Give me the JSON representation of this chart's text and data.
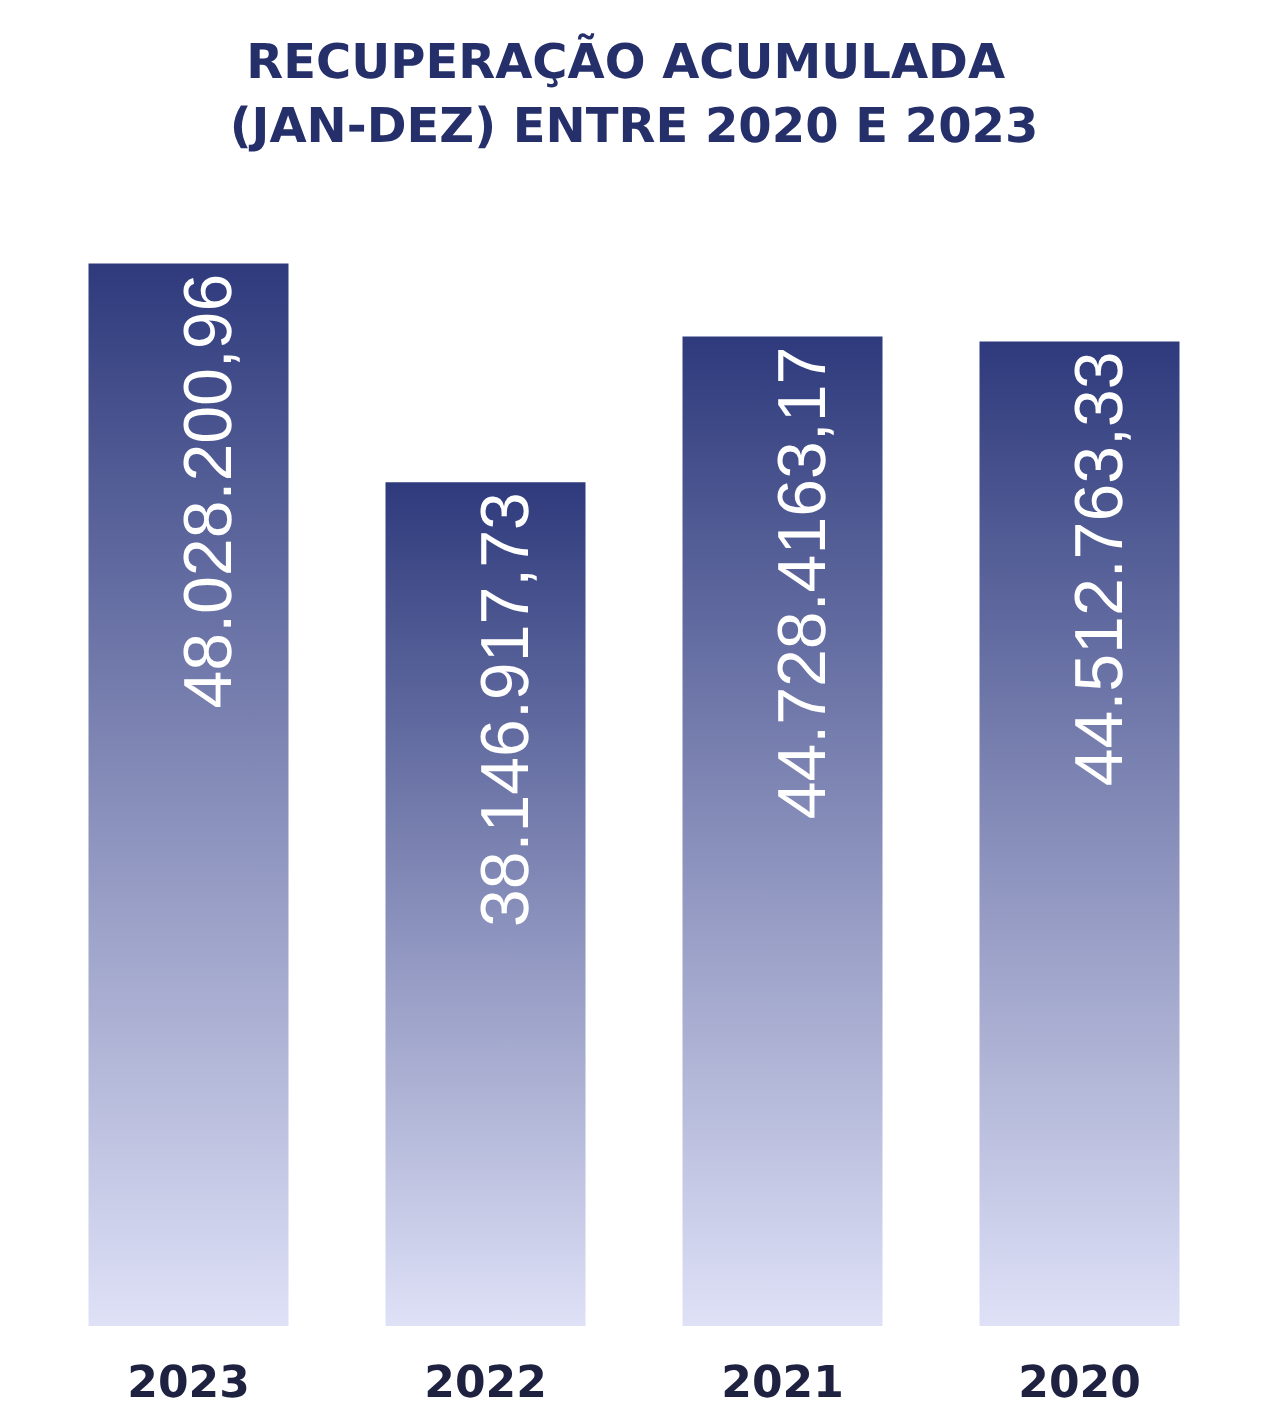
{
  "chart_data": {
    "type": "bar",
    "title": "RECUPERAÇÃO ACUMULADA (JAN-DEZ) ENTRE 2020 E 2023",
    "categories": [
      "2023",
      "2022",
      "2021",
      "2020"
    ],
    "values": [
      48028200.96,
      38146917.73,
      44728416.17,
      44512763.33
    ],
    "value_labels": [
      "48.028.200,96",
      "38.146.917,73",
      "44.728.4163,17",
      "44.512.763,33"
    ],
    "color": "#2e3a7c"
  }
}
